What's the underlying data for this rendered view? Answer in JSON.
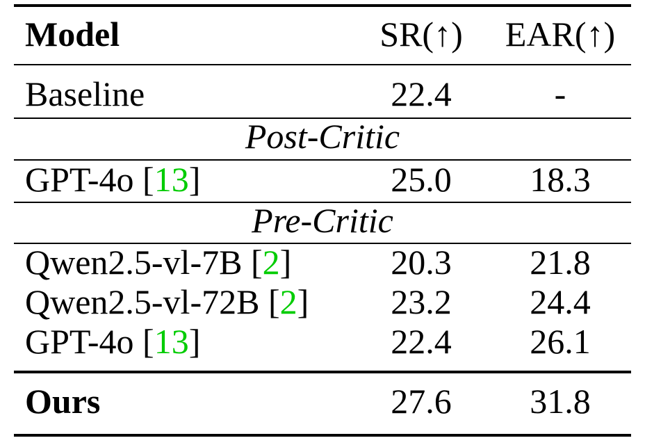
{
  "table": {
    "header": {
      "model": "Model",
      "sr": "SR(↑)",
      "ear": "EAR(↑)"
    },
    "baseline": {
      "model": "Baseline",
      "sr": "22.4",
      "ear": "-"
    },
    "post_critic_label": "Post-Critic",
    "post_rows": [
      {
        "model": "GPT-4o",
        "cite": "13",
        "sr": "25.0",
        "ear": "18.3"
      }
    ],
    "pre_critic_label": "Pre-Critic",
    "pre_rows": [
      {
        "model": "Qwen2.5-vl-7B",
        "cite": "2",
        "sr": "20.3",
        "ear": "21.8"
      },
      {
        "model": "Qwen2.5-vl-72B",
        "cite": "2",
        "sr": "23.2",
        "ear": "24.4"
      },
      {
        "model": "GPT-4o",
        "cite": "13",
        "sr": "22.4",
        "ear": "26.1"
      }
    ],
    "ours": {
      "model": "Ours",
      "sr": "27.6",
      "ear": "31.8"
    }
  },
  "colors": {
    "citation": "#00cc00"
  }
}
